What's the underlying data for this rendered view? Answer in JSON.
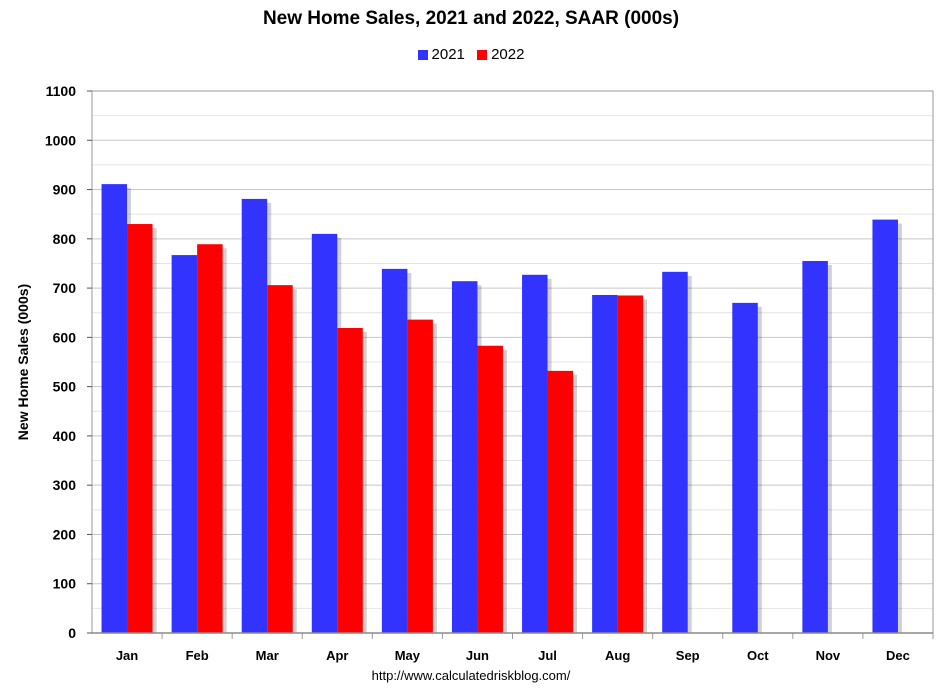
{
  "chart_data": {
    "type": "bar",
    "title": "New Home Sales,  2021 and 2022, SAAR (000s)",
    "xlabel": "",
    "ylabel": "New Home Sales (000s)",
    "ylim": [
      0,
      1100
    ],
    "yticks": [
      0,
      100,
      200,
      300,
      400,
      500,
      600,
      700,
      800,
      900,
      1000,
      1100
    ],
    "grid": true,
    "legend_position": "top-center",
    "categories": [
      "Jan",
      "Feb",
      "Mar",
      "Apr",
      "May",
      "Jun",
      "Jul",
      "Aug",
      "Sep",
      "Oct",
      "Nov",
      "Dec"
    ],
    "series": [
      {
        "name": "2021",
        "color": "#3333ff",
        "values": [
          911,
          767,
          881,
          810,
          739,
          714,
          727,
          686,
          733,
          670,
          755,
          839
        ]
      },
      {
        "name": "2022",
        "color": "#ff0000",
        "values": [
          830,
          789,
          706,
          619,
          636,
          583,
          532,
          685,
          null,
          null,
          null,
          null
        ]
      }
    ]
  },
  "footer": "http://www.calculatedriskblog.com/"
}
